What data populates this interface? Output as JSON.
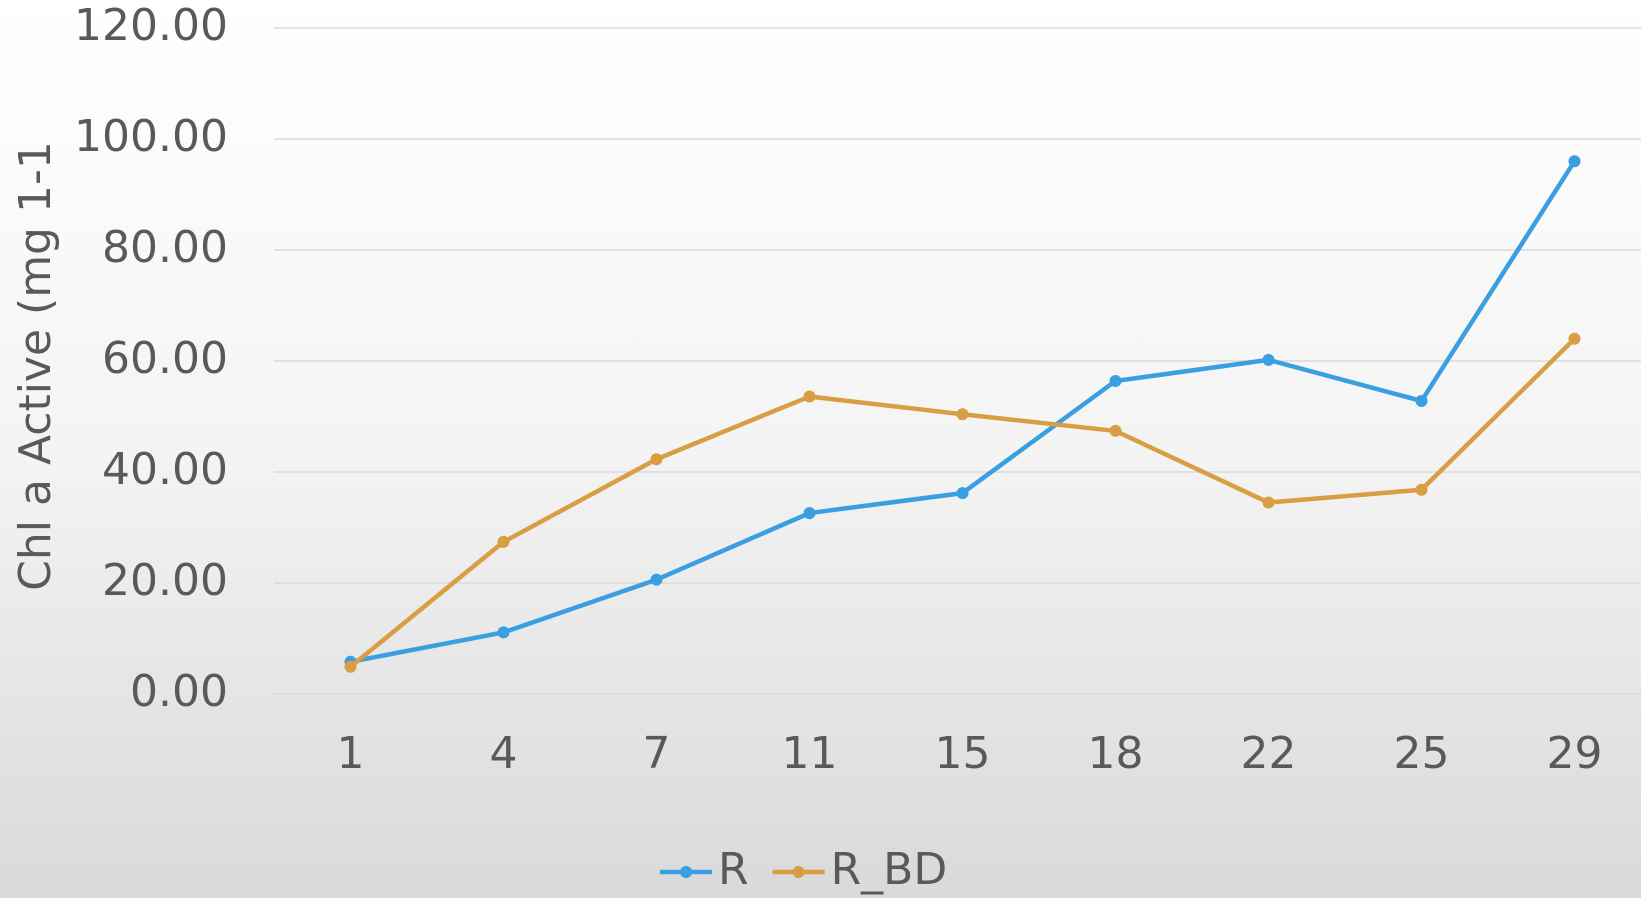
{
  "chart_data": {
    "type": "line",
    "y_label": "Chl a Active (mg 1-1",
    "categories": [
      "1",
      "4",
      "7",
      "11",
      "15",
      "18",
      "22",
      "25",
      "29"
    ],
    "series": [
      {
        "name": "R",
        "color": "#3a9fe0",
        "values": [
          5.8,
          11.1,
          20.6,
          32.6,
          36.2,
          56.4,
          60.2,
          52.8,
          96.0
        ]
      },
      {
        "name": "R_BD",
        "color": "#d99e43",
        "values": [
          4.9,
          27.4,
          42.3,
          53.6,
          50.4,
          47.4,
          34.5,
          36.8,
          64.0
        ]
      }
    ],
    "ylim": [
      0,
      120
    ],
    "yticks": [
      {
        "value": 0,
        "label": "0.00"
      },
      {
        "value": 20,
        "label": "20.00"
      },
      {
        "value": 40,
        "label": "40.00"
      },
      {
        "value": 60,
        "label": "60.00"
      },
      {
        "value": 80,
        "label": "80.00"
      },
      {
        "value": 100,
        "label": "100.00"
      },
      {
        "value": 120,
        "label": "120.00"
      }
    ],
    "grid": true,
    "legend": "bottom"
  }
}
